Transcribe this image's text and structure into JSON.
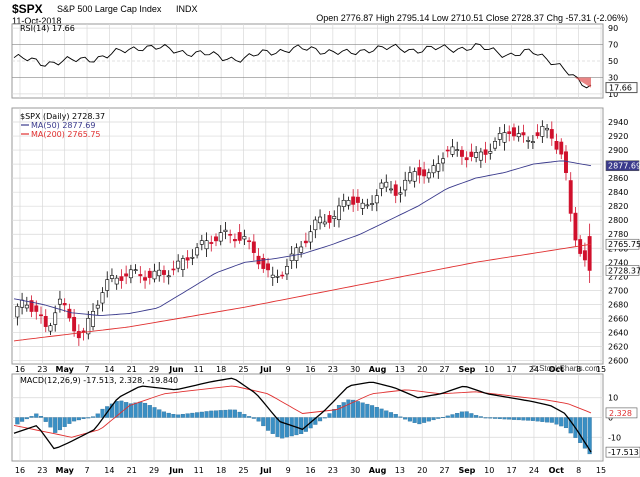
{
  "header": {
    "symbol": "$SPX",
    "description": "S&P 500 Large Cap Index",
    "exchange": "INDX",
    "date": "11-Oct-2018",
    "quote": "Open 2776.87  High 2795.14  Low 2710.51  Close 2728.37  Chg -57.31 (-2.06%)",
    "quote_close_arrow": "▼",
    "credit": "© StockCharts.com"
  },
  "rsi": {
    "legend": "RSI(14) 17.66",
    "ticks": [
      "90",
      "70",
      "50",
      "30",
      "10"
    ],
    "last_label": "17.66"
  },
  "price": {
    "legend_main": "$SPX (Daily) 2728.37",
    "legend_ma50": "MA(50) 2877.69",
    "legend_ma200": "MA(200) 2765.75",
    "ticks": [
      "2940",
      "2920",
      "2900",
      "2880",
      "2860",
      "2840",
      "2820",
      "2800",
      "2780",
      "2760",
      "2740",
      "2720",
      "2700",
      "2680",
      "2660",
      "2640",
      "2620",
      "2600"
    ],
    "ma50_label": "2877.69",
    "ma200_label": "2765.75",
    "close_label": "2728.37"
  },
  "macd": {
    "legend": "MACD(12,26,9) -17.513, 2.328, -19.840",
    "ticks": [
      "10",
      "0",
      "-10"
    ],
    "signal_label": "2.328",
    "macd_label": "-17.513"
  },
  "x_axis": {
    "labels": [
      "16",
      "23",
      "May",
      "7",
      "14",
      "21",
      "29",
      "Jun",
      "11",
      "18",
      "25",
      "Jul",
      "9",
      "16",
      "23",
      "30",
      "Aug",
      "13",
      "20",
      "27",
      "Sep",
      "10",
      "17",
      "24",
      "Oct",
      "8",
      "15"
    ]
  },
  "colors": {
    "up": "#ffffff",
    "down": "#d0102c",
    "ma50": "#3a3a8c",
    "ma200": "#e03030",
    "macd": "#000000",
    "signal": "#e03030",
    "histogram": "#3a8fc4",
    "grid": "#d8d8d8"
  },
  "chart_data": {
    "type": "candlestick",
    "x": [
      "2018-04-16",
      "2018-04-23",
      "2018-05-01",
      "2018-05-07",
      "2018-05-14",
      "2018-05-21",
      "2018-05-29",
      "2018-06-01",
      "2018-06-11",
      "2018-06-18",
      "2018-06-25",
      "2018-07-02",
      "2018-07-09",
      "2018-07-16",
      "2018-07-23",
      "2018-07-30",
      "2018-08-06",
      "2018-08-13",
      "2018-08-20",
      "2018-08-27",
      "2018-09-04",
      "2018-09-10",
      "2018-09-17",
      "2018-09-24",
      "2018-10-01",
      "2018-10-08",
      "2018-10-15"
    ],
    "price_ylim": [
      2595,
      2960
    ],
    "weekly_close": [
      2670,
      2668,
      2663,
      2727,
      2720,
      2721,
      2735,
      2779,
      2779,
      2754,
      2718,
      2759,
      2801,
      2802,
      2819,
      2840,
      2833,
      2850,
      2874,
      2901,
      2872,
      2905,
      2930,
      2914,
      2885,
      2728,
      null
    ],
    "series": [
      {
        "name": "MA(50)",
        "last": 2877.69
      },
      {
        "name": "MA(200)",
        "last": 2765.75
      }
    ],
    "rsi_last": 17.66,
    "macd_last": {
      "macd": -17.513,
      "signal": 2.328,
      "histogram": -19.84
    }
  }
}
